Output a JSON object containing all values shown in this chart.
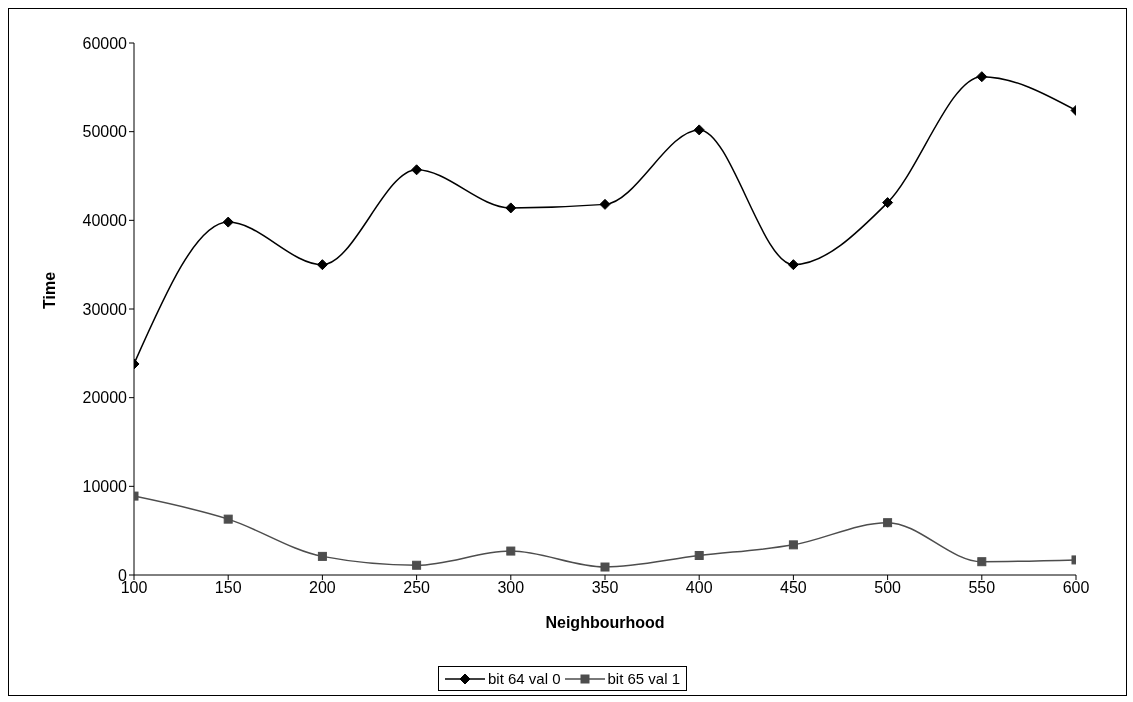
{
  "chart_data": {
    "type": "line",
    "xlabel": "Neighbourhood",
    "ylabel": "Time",
    "x": [
      100,
      150,
      200,
      250,
      300,
      350,
      400,
      450,
      500,
      550,
      600
    ],
    "series": [
      {
        "name": "bit 64 val 0",
        "color": "#000000",
        "marker": "diamond",
        "values": [
          23800,
          39800,
          35000,
          45700,
          41400,
          41800,
          50200,
          35000,
          42000,
          56200,
          52400
        ]
      },
      {
        "name": "bit 65 val 1",
        "color": "#4d4d4d",
        "marker": "square",
        "values": [
          8900,
          6300,
          2100,
          1100,
          2700,
          900,
          2200,
          3400,
          5900,
          1500,
          1700
        ]
      }
    ],
    "xlim": [
      100,
      600
    ],
    "xticks": [
      100,
      150,
      200,
      250,
      300,
      350,
      400,
      450,
      500,
      550,
      600
    ],
    "ylim": [
      0,
      60000
    ],
    "yticks": [
      0,
      10000,
      20000,
      30000,
      40000,
      50000,
      60000
    ],
    "grid": false,
    "legend": "bottom",
    "line_style": "solid"
  }
}
